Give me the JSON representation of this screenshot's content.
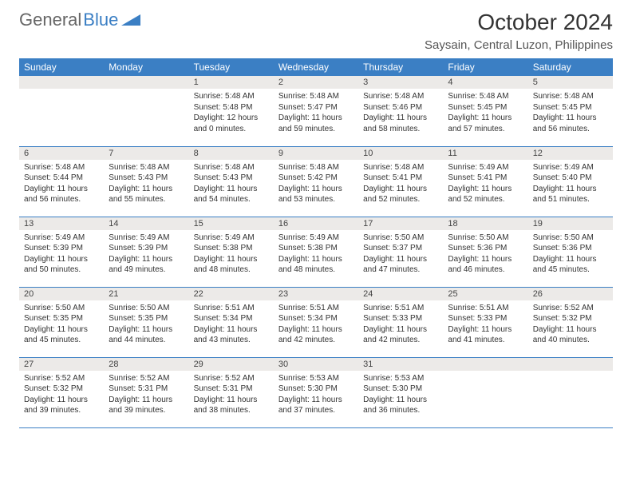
{
  "logo": {
    "text1": "General",
    "text2": "Blue",
    "icon_color": "#3b7fc4"
  },
  "title": "October 2024",
  "location": "Saysain, Central Luzon, Philippines",
  "colors": {
    "header_bg": "#3b7fc4",
    "header_text": "#ffffff",
    "daynum_bg": "#eceae8",
    "border": "#3b7fc4",
    "body_text": "#333333"
  },
  "weekdays": [
    "Sunday",
    "Monday",
    "Tuesday",
    "Wednesday",
    "Thursday",
    "Friday",
    "Saturday"
  ],
  "weeks": [
    [
      null,
      null,
      {
        "d": "1",
        "sr": "5:48 AM",
        "ss": "5:48 PM",
        "dl": "12 hours and 0 minutes."
      },
      {
        "d": "2",
        "sr": "5:48 AM",
        "ss": "5:47 PM",
        "dl": "11 hours and 59 minutes."
      },
      {
        "d": "3",
        "sr": "5:48 AM",
        "ss": "5:46 PM",
        "dl": "11 hours and 58 minutes."
      },
      {
        "d": "4",
        "sr": "5:48 AM",
        "ss": "5:45 PM",
        "dl": "11 hours and 57 minutes."
      },
      {
        "d": "5",
        "sr": "5:48 AM",
        "ss": "5:45 PM",
        "dl": "11 hours and 56 minutes."
      }
    ],
    [
      {
        "d": "6",
        "sr": "5:48 AM",
        "ss": "5:44 PM",
        "dl": "11 hours and 56 minutes."
      },
      {
        "d": "7",
        "sr": "5:48 AM",
        "ss": "5:43 PM",
        "dl": "11 hours and 55 minutes."
      },
      {
        "d": "8",
        "sr": "5:48 AM",
        "ss": "5:43 PM",
        "dl": "11 hours and 54 minutes."
      },
      {
        "d": "9",
        "sr": "5:48 AM",
        "ss": "5:42 PM",
        "dl": "11 hours and 53 minutes."
      },
      {
        "d": "10",
        "sr": "5:48 AM",
        "ss": "5:41 PM",
        "dl": "11 hours and 52 minutes."
      },
      {
        "d": "11",
        "sr": "5:49 AM",
        "ss": "5:41 PM",
        "dl": "11 hours and 52 minutes."
      },
      {
        "d": "12",
        "sr": "5:49 AM",
        "ss": "5:40 PM",
        "dl": "11 hours and 51 minutes."
      }
    ],
    [
      {
        "d": "13",
        "sr": "5:49 AM",
        "ss": "5:39 PM",
        "dl": "11 hours and 50 minutes."
      },
      {
        "d": "14",
        "sr": "5:49 AM",
        "ss": "5:39 PM",
        "dl": "11 hours and 49 minutes."
      },
      {
        "d": "15",
        "sr": "5:49 AM",
        "ss": "5:38 PM",
        "dl": "11 hours and 48 minutes."
      },
      {
        "d": "16",
        "sr": "5:49 AM",
        "ss": "5:38 PM",
        "dl": "11 hours and 48 minutes."
      },
      {
        "d": "17",
        "sr": "5:50 AM",
        "ss": "5:37 PM",
        "dl": "11 hours and 47 minutes."
      },
      {
        "d": "18",
        "sr": "5:50 AM",
        "ss": "5:36 PM",
        "dl": "11 hours and 46 minutes."
      },
      {
        "d": "19",
        "sr": "5:50 AM",
        "ss": "5:36 PM",
        "dl": "11 hours and 45 minutes."
      }
    ],
    [
      {
        "d": "20",
        "sr": "5:50 AM",
        "ss": "5:35 PM",
        "dl": "11 hours and 45 minutes."
      },
      {
        "d": "21",
        "sr": "5:50 AM",
        "ss": "5:35 PM",
        "dl": "11 hours and 44 minutes."
      },
      {
        "d": "22",
        "sr": "5:51 AM",
        "ss": "5:34 PM",
        "dl": "11 hours and 43 minutes."
      },
      {
        "d": "23",
        "sr": "5:51 AM",
        "ss": "5:34 PM",
        "dl": "11 hours and 42 minutes."
      },
      {
        "d": "24",
        "sr": "5:51 AM",
        "ss": "5:33 PM",
        "dl": "11 hours and 42 minutes."
      },
      {
        "d": "25",
        "sr": "5:51 AM",
        "ss": "5:33 PM",
        "dl": "11 hours and 41 minutes."
      },
      {
        "d": "26",
        "sr": "5:52 AM",
        "ss": "5:32 PM",
        "dl": "11 hours and 40 minutes."
      }
    ],
    [
      {
        "d": "27",
        "sr": "5:52 AM",
        "ss": "5:32 PM",
        "dl": "11 hours and 39 minutes."
      },
      {
        "d": "28",
        "sr": "5:52 AM",
        "ss": "5:31 PM",
        "dl": "11 hours and 39 minutes."
      },
      {
        "d": "29",
        "sr": "5:52 AM",
        "ss": "5:31 PM",
        "dl": "11 hours and 38 minutes."
      },
      {
        "d": "30",
        "sr": "5:53 AM",
        "ss": "5:30 PM",
        "dl": "11 hours and 37 minutes."
      },
      {
        "d": "31",
        "sr": "5:53 AM",
        "ss": "5:30 PM",
        "dl": "11 hours and 36 minutes."
      },
      null,
      null
    ]
  ],
  "labels": {
    "sunrise": "Sunrise:",
    "sunset": "Sunset:",
    "daylight": "Daylight:"
  }
}
